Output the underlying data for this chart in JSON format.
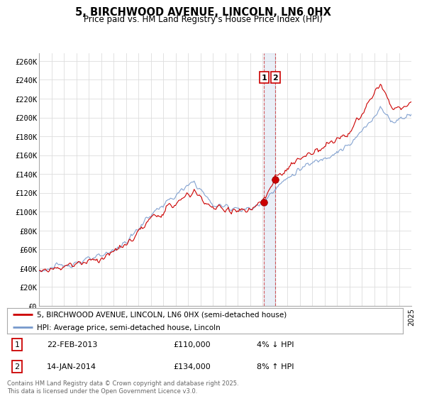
{
  "title": "5, BIRCHWOOD AVENUE, LINCOLN, LN6 0HX",
  "subtitle": "Price paid vs. HM Land Registry's House Price Index (HPI)",
  "ylabel_ticks": [
    "£0",
    "£20K",
    "£40K",
    "£60K",
    "£80K",
    "£100K",
    "£120K",
    "£140K",
    "£160K",
    "£180K",
    "£200K",
    "£220K",
    "£240K",
    "£260K"
  ],
  "ytick_values": [
    0,
    20000,
    40000,
    60000,
    80000,
    100000,
    120000,
    140000,
    160000,
    180000,
    200000,
    220000,
    240000,
    260000
  ],
  "ylim": [
    0,
    268000
  ],
  "x_start_year": 1995,
  "x_end_year": 2025,
  "background_color": "#ffffff",
  "grid_color": "#dddddd",
  "hpi_line_color": "#7799cc",
  "price_line_color": "#cc0000",
  "sale1_price": 110000,
  "sale1_note": "4% ↓ HPI",
  "sale2_date": "14-JAN-2014",
  "sale2_price": 134000,
  "sale2_note": "8% ↑ HPI",
  "sale1_year": 2013.13,
  "sale2_year": 2014.04,
  "legend_label1": "5, BIRCHWOOD AVENUE, LINCOLN, LN6 0HX (semi-detached house)",
  "legend_label2": "HPI: Average price, semi-detached house, Lincoln",
  "sale1_date": "22-FEB-2013",
  "footer": "Contains HM Land Registry data © Crown copyright and database right 2025.\nThis data is licensed under the Open Government Licence v3.0."
}
